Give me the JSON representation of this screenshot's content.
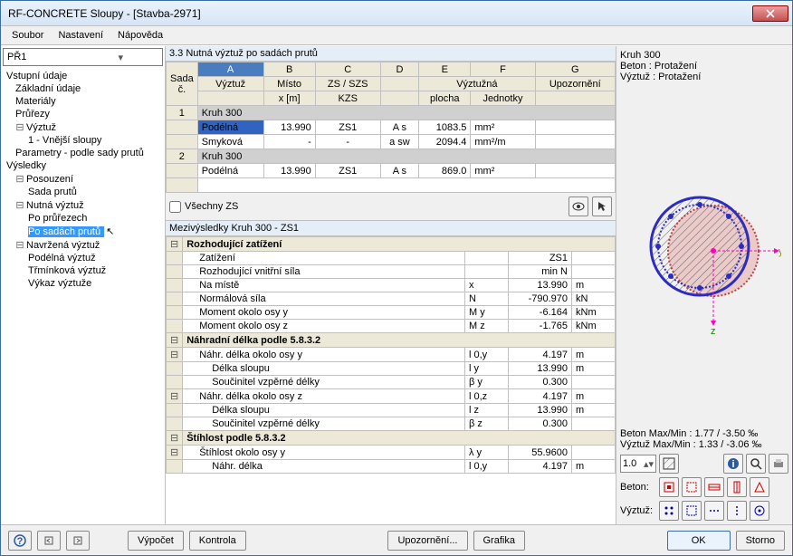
{
  "title": "RF-CONCRETE Sloupy - [Stavba-2971]",
  "menu": [
    "Soubor",
    "Nastavení",
    "Nápověda"
  ],
  "combo": "PŘ1",
  "tree": [
    {
      "label": "Vstupní údaje",
      "level": 0
    },
    {
      "label": "Základní údaje",
      "level": 1
    },
    {
      "label": "Materiály",
      "level": 1
    },
    {
      "label": "Průřezy",
      "level": 1
    },
    {
      "label": "Výztuž",
      "level": 1,
      "exp": "⊟"
    },
    {
      "label": "1 - Vnější sloupy",
      "level": 2
    },
    {
      "label": "Parametry - podle sady prutů",
      "level": 1
    },
    {
      "label": "Výsledky",
      "level": 0
    },
    {
      "label": "Posouzení",
      "level": 1,
      "exp": "⊟"
    },
    {
      "label": "Sada prutů",
      "level": 2
    },
    {
      "label": "Nutná výztuž",
      "level": 1,
      "exp": "⊟"
    },
    {
      "label": "Po průřezech",
      "level": 2
    },
    {
      "label": "Po sadách prutů",
      "level": 2,
      "sel": true
    },
    {
      "label": "Navržená výztuž",
      "level": 1,
      "exp": "⊟"
    },
    {
      "label": "Podélná výztuž",
      "level": 2
    },
    {
      "label": "Třmínková výztuž",
      "level": 2
    },
    {
      "label": "Výkaz výztuže",
      "level": 2
    }
  ],
  "section_title": "3.3 Nutná výztuž po sadách prutů",
  "grid": {
    "col_letters": [
      "A",
      "B",
      "C",
      "D",
      "E",
      "F",
      "G"
    ],
    "headers_r1": [
      "Sada",
      "Výztuž",
      "Místo",
      "ZS / SZS",
      "",
      "Výztužná",
      "",
      "Upozornění"
    ],
    "headers_r2": [
      "č.",
      "",
      "x [m]",
      "KZS",
      "",
      "plocha",
      "Jednotky",
      ""
    ],
    "groups": [
      {
        "no": "1",
        "name": "Kruh 300",
        "rows": [
          {
            "v": "Podélná",
            "x": "13.990",
            "zs": "ZS1",
            "sym": "A s",
            "plocha": "1083.5",
            "unit": "mm²",
            "sel": true
          },
          {
            "v": "Smyková",
            "x": "-",
            "zs": "-",
            "sym": "a sw",
            "plocha": "2094.4",
            "unit": "mm²/m"
          }
        ]
      },
      {
        "no": "2",
        "name": "Kruh 300",
        "rows": [
          {
            "v": "Podélná",
            "x": "13.990",
            "zs": "ZS1",
            "sym": "A s",
            "plocha": "869.0",
            "unit": "mm²"
          }
        ]
      }
    ]
  },
  "vsechny_zs": "Všechny ZS",
  "results_title": "Mezivýsledky Kruh 300 - ZS1",
  "results": [
    {
      "type": "grp",
      "exp": "⊟",
      "label": "Rozhodující zatížení"
    },
    {
      "label": "Zatížení",
      "sym": "",
      "val": "ZS1",
      "unit": "",
      "lvl": 1
    },
    {
      "label": "Rozhodující vnitřní síla",
      "sym": "",
      "val": "min N",
      "unit": "",
      "lvl": 1
    },
    {
      "label": "Na místě",
      "sym": "x",
      "val": "13.990",
      "unit": "m",
      "lvl": 1
    },
    {
      "label": "Normálová síla",
      "sym": "N",
      "val": "-790.970",
      "unit": "kN",
      "lvl": 1
    },
    {
      "label": "Moment okolo osy y",
      "sym": "M y",
      "val": "-6.164",
      "unit": "kNm",
      "lvl": 1
    },
    {
      "label": "Moment okolo osy z",
      "sym": "M z",
      "val": "-1.765",
      "unit": "kNm",
      "lvl": 1
    },
    {
      "type": "grp",
      "exp": "⊟",
      "label": "Náhradní délka podle 5.8.3.2"
    },
    {
      "type": "sub",
      "exp": "⊟",
      "label": "Náhr. délka okolo osy y",
      "sym": "l 0,y",
      "val": "4.197",
      "unit": "m"
    },
    {
      "label": "Délka sloupu",
      "sym": "l y",
      "val": "13.990",
      "unit": "m",
      "lvl": 2
    },
    {
      "label": "Součinitel vzpěrné délky",
      "sym": "β y",
      "val": "0.300",
      "unit": "",
      "lvl": 2
    },
    {
      "type": "sub",
      "exp": "⊟",
      "label": "Náhr. délka okolo osy z",
      "sym": "l 0,z",
      "val": "4.197",
      "unit": "m"
    },
    {
      "label": "Délka sloupu",
      "sym": "l z",
      "val": "13.990",
      "unit": "m",
      "lvl": 2
    },
    {
      "label": "Součinitel vzpěrné délky",
      "sym": "β z",
      "val": "0.300",
      "unit": "",
      "lvl": 2
    },
    {
      "type": "grp",
      "exp": "⊟",
      "label": "Štíhlost podle 5.8.3.2"
    },
    {
      "type": "sub",
      "exp": "⊟",
      "label": "Štíhlost okolo osy y",
      "sym": "λ y",
      "val": "55.9600",
      "unit": ""
    },
    {
      "label": "Náhr. délka",
      "sym": "l 0,y",
      "val": "4.197",
      "unit": "m",
      "lvl": 2
    }
  ],
  "right": {
    "name": "Kruh 300",
    "beton": "Beton : Protažení",
    "vyztuz": "Výztuž : Protažení",
    "stat_beton": "Beton   Max/Min :  1.77 / -3.50 ‰",
    "stat_vyztuz": "Výztuž  Max/Min :  1.33 / -3.06 ‰",
    "spin": "1.0",
    "lbl_beton": "Beton:",
    "lbl_vyztuz": "Výztuž:"
  },
  "buttons": {
    "vypocet": "Výpočet",
    "kontrola": "Kontrola",
    "upozorneni": "Upozornění...",
    "grafika": "Grafika",
    "ok": "OK",
    "storno": "Storno"
  },
  "colors": {
    "accent": "#3a6ea5",
    "sel_bg": "#3399ff",
    "header_bg": "#ece9d8",
    "section_bg": "#e5eef7",
    "circle_outer": "#2c2cc0",
    "circle_inner": "#c04040"
  }
}
